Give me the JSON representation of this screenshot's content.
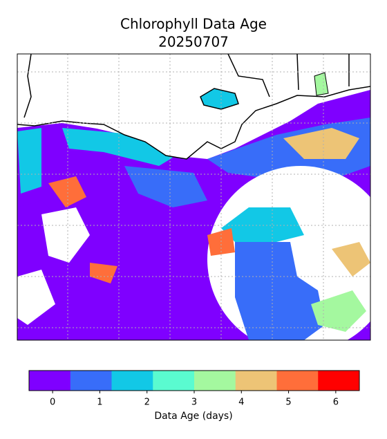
{
  "title": "Chlorophyll Data Age",
  "subtitle": "20250707",
  "colorbar": {
    "label": "Data Age (days)",
    "lim": [
      -0.5,
      6.5
    ],
    "ticks": [
      0,
      1,
      2,
      3,
      4,
      5,
      6
    ],
    "colors": [
      "#7f00ff",
      "#386df9",
      "#12c8e6",
      "#5afbd0",
      "#a4f89f",
      "#edc476",
      "#ff6e3a",
      "#ff0000"
    ]
  }
}
